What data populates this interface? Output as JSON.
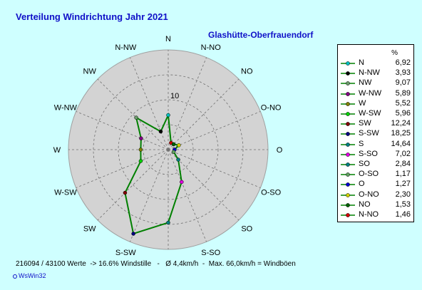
{
  "title": "Verteilung Windrichtung    Jahr 2021",
  "subtitle": "Glashütte-Oberfrauendorf",
  "legend_unit": "%",
  "footer": "216094 / 43100 Werte  -> 16.6% Windstille   -   Ø 4,4km/h  -  Max. 66,0km/h = Windböen",
  "credit": "WsWin32",
  "chart_data": {
    "type": "radar",
    "directions": [
      "N",
      "N-NO",
      "NO",
      "O-NO",
      "O",
      "O-SO",
      "SO",
      "S-SO",
      "S",
      "S-SW",
      "SW",
      "W-SW",
      "W",
      "W-NW",
      "NW",
      "N-NW"
    ],
    "radial_tick_label": "10",
    "radial_max": 20,
    "grid": true,
    "legend_position": "right",
    "line_color": "#008000",
    "series": [
      {
        "label": "N",
        "value": "6,92",
        "v": 6.92,
        "color": "#00c0c0"
      },
      {
        "label": "N-NW",
        "value": "3,93",
        "v": 3.93,
        "color": "#000000"
      },
      {
        "label": "NW",
        "value": "9,07",
        "v": 9.07,
        "color": "#6a9a6a"
      },
      {
        "label": "W-NW",
        "value": "5,89",
        "v": 5.89,
        "color": "#800080"
      },
      {
        "label": "W",
        "value": "5,52",
        "v": 5.52,
        "color": "#808000"
      },
      {
        "label": "W-SW",
        "value": "5,96",
        "v": 5.96,
        "color": "#00d000"
      },
      {
        "label": "SW",
        "value": "12,24",
        "v": 12.24,
        "color": "#800000"
      },
      {
        "label": "S-SW",
        "value": "18,25",
        "v": 18.25,
        "color": "#000080"
      },
      {
        "label": "S",
        "value": "14,64",
        "v": 14.64,
        "color": "#008080"
      },
      {
        "label": "S-SO",
        "value": "7,02",
        "v": 7.02,
        "color": "#e000e0"
      },
      {
        "label": "SO",
        "value": "2,84",
        "v": 2.84,
        "color": "#008080"
      },
      {
        "label": "O-SO",
        "value": "1,17",
        "v": 1.17,
        "color": "#60a060"
      },
      {
        "label": "O",
        "value": "1,27",
        "v": 1.27,
        "color": "#0000d0"
      },
      {
        "label": "O-NO",
        "value": "2,30",
        "v": 2.3,
        "color": "#d0d000"
      },
      {
        "label": "NO",
        "value": "1,53",
        "v": 1.53,
        "color": "#006000"
      },
      {
        "label": "N-NO",
        "value": "1,46",
        "v": 1.46,
        "color": "#d00000"
      }
    ]
  }
}
